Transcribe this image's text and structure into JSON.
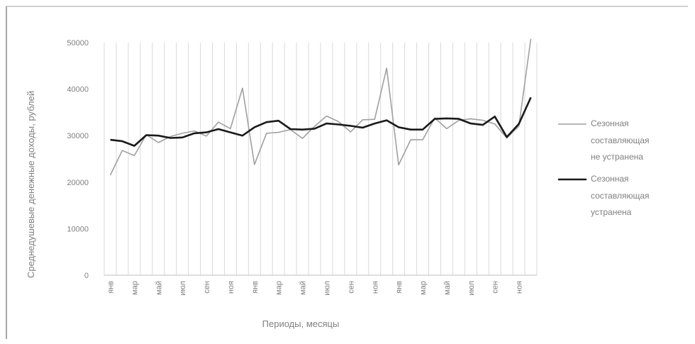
{
  "chart_data": {
    "type": "line",
    "title": "",
    "xlabel": "Периоды, месяцы",
    "ylabel": "Среднедушевые денежные доходы, рублей",
    "ylim": [
      0,
      50000
    ],
    "y_ticks": [
      0,
      10000,
      20000,
      30000,
      40000,
      50000
    ],
    "y_tick_labels": [
      "0",
      "10000",
      "20000",
      "30000",
      "40000",
      "50000"
    ],
    "grid": "vertical",
    "legend_position": "right",
    "x_index": [
      1,
      2,
      3,
      4,
      5,
      6,
      7,
      8,
      9,
      10,
      11,
      12,
      13,
      14,
      15,
      16,
      17,
      18,
      19,
      20,
      21,
      22,
      23,
      24,
      25,
      26,
      27,
      28,
      29,
      30,
      31,
      32,
      33,
      34,
      35,
      36
    ],
    "x_tick_labels": [
      "янв",
      "",
      "мар",
      "",
      "май",
      "",
      "июл",
      "",
      "сен",
      "",
      "ноя",
      "",
      "янв",
      "",
      "мар",
      "",
      "май",
      "",
      "июл",
      "",
      "сен",
      "",
      "ноя",
      "",
      "янв",
      "",
      "мар",
      "",
      "май",
      "",
      "июл",
      "",
      "сен",
      "",
      "ноя",
      ""
    ],
    "series": [
      {
        "name": "Сезонная составляющая не устранена",
        "color": "#a0a0a0",
        "values": [
          21500,
          26800,
          25700,
          30200,
          28500,
          29800,
          30500,
          31000,
          29900,
          32900,
          31500,
          40200,
          23800,
          30500,
          30700,
          31300,
          29400,
          32000,
          34200,
          33000,
          30800,
          33400,
          33500,
          44500,
          23700,
          29100,
          29100,
          33800,
          31500,
          33300,
          33600,
          33300,
          32500,
          29500,
          32000,
          50800
        ]
      },
      {
        "name": "Сезонная составляющая устранена",
        "color": "#1a1a1a",
        "values": [
          29100,
          28800,
          27800,
          30100,
          30000,
          29500,
          29600,
          30500,
          30700,
          31400,
          30700,
          30000,
          31800,
          32900,
          33200,
          31400,
          31300,
          31500,
          32600,
          32400,
          32100,
          31700,
          32600,
          33300,
          31800,
          31300,
          31300,
          33600,
          33700,
          33600,
          32600,
          32300,
          34100,
          29700,
          32500,
          38200
        ]
      }
    ]
  }
}
